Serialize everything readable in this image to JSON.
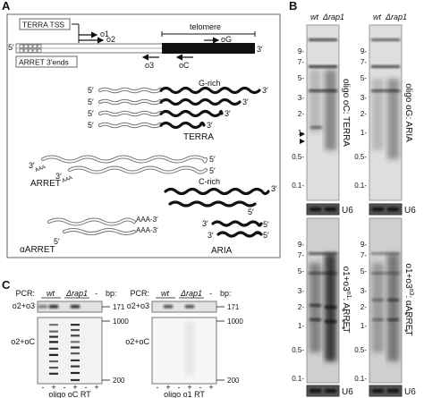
{
  "panel_a": {
    "label": "A",
    "tss": "TERRA TSS",
    "o1": "o1",
    "o2": "o2",
    "telomere": "telomere",
    "oG": "oG",
    "five": "5′",
    "three": "3′",
    "arret_ends": "ARRET 3′ends",
    "o3": "o3",
    "oC": "oC",
    "g_rich": "G-rich",
    "terra": "TERRA",
    "aaa": "AAA",
    "arret": "ARRET",
    "alpha_arret": "αARRET",
    "aaa3": "AAA-3′",
    "c_rich": "C-rich",
    "aria": "ARIA"
  },
  "panel_b": {
    "label": "B",
    "lanes": [
      "wt",
      "Δrap1"
    ],
    "markers": [
      "9-",
      "7-",
      "5-",
      "3-",
      "2-",
      "1-",
      "0.5-",
      "0.1-"
    ],
    "top_left": "oligo oC: TERRA",
    "top_right": "oligo oG: ARIA",
    "probe": "o1+o3",
    "sup_left": "o1",
    "target_left": ": ARRET",
    "sup_right": "o3",
    "target_right": ": αARRET",
    "u6": "U6",
    "asterisk": "*"
  },
  "panel_c": {
    "label": "C",
    "pcr": "PCR:",
    "bp": "bp:",
    "lanes": [
      "wt",
      "Δrap1",
      "-"
    ],
    "rows": [
      "o2+o3",
      "o2+oC"
    ],
    "sizes": [
      "171",
      "1000",
      "200"
    ],
    "rt": [
      "-",
      "+"
    ],
    "captions": [
      "oligo oC RT",
      "oligo o1 RT"
    ]
  }
}
